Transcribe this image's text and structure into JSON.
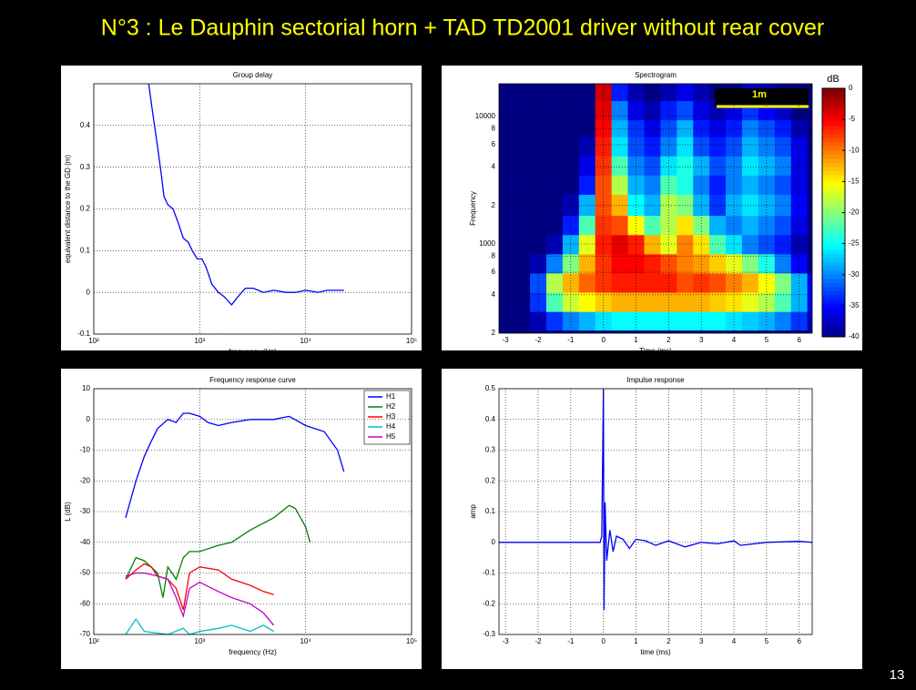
{
  "slide": {
    "title": "N°3 : Le Dauphin sectorial horn + TAD TD2001 driver without rear cover",
    "page_number": "13"
  },
  "chart_data": [
    {
      "type": "line",
      "title": "Group delay",
      "xlabel": "frequency  (Hz)",
      "ylabel": "equivalent distance to the GD (m)",
      "xscale": "log",
      "grid": true,
      "xlim": [
        100,
        100000
      ],
      "ylim": [
        -0.1,
        0.5
      ],
      "xticks": [
        {
          "value": 100,
          "label": "10²"
        },
        {
          "value": 1000,
          "label": "10³"
        },
        {
          "value": 10000,
          "label": "10⁴"
        },
        {
          "value": 100000,
          "label": "10⁵"
        }
      ],
      "yticks": [
        -0.1,
        0,
        0.1,
        0.2,
        0.3,
        0.4
      ],
      "series": [
        {
          "color": "#0000ff",
          "x": [
            330,
            360,
            400,
            430,
            460,
            500,
            560,
            620,
            700,
            780,
            850,
            950,
            1050,
            1150,
            1300,
            1500,
            1700,
            2000,
            2300,
            2700,
            3200,
            4000,
            5000,
            6500,
            8000,
            10000,
            13000,
            16000,
            20000,
            23000
          ],
          "values": [
            0.5,
            0.43,
            0.35,
            0.29,
            0.23,
            0.21,
            0.2,
            0.17,
            0.13,
            0.12,
            0.1,
            0.08,
            0.08,
            0.06,
            0.02,
            0.0,
            -0.01,
            -0.03,
            -0.01,
            0.01,
            0.01,
            0.0,
            0.005,
            0.0,
            0.0,
            0.005,
            0.0,
            0.005,
            0.005,
            0.005
          ]
        }
      ]
    },
    {
      "type": "heatmap",
      "title": "Spectrogram",
      "xlabel": "Time (ms)",
      "ylabel": "Frequency",
      "yscale": "log",
      "grid": true,
      "colormap": "jet",
      "colorbar_label": "dB",
      "annotation": "1m",
      "xlim": [
        -3.2,
        6.4
      ],
      "ylim": [
        200,
        18000
      ],
      "xticks": [
        -3,
        -2,
        -1,
        0,
        1,
        2,
        3,
        4,
        5,
        6
      ],
      "yticks": [
        {
          "value": 200,
          "label": "2"
        },
        {
          "value": 400,
          "label": "4"
        },
        {
          "value": 600,
          "label": "6"
        },
        {
          "value": 800,
          "label": "8"
        },
        1000,
        {
          "value": 2000,
          "label": "2"
        },
        {
          "value": 4000,
          "label": "4"
        },
        {
          "value": 6000,
          "label": "6"
        },
        {
          "value": 8000,
          "label": "8"
        },
        10000
      ],
      "clim": [
        -40,
        0
      ],
      "cticks": [
        0,
        -5,
        -10,
        -15,
        -20,
        -25,
        -30,
        -35,
        -40
      ],
      "x": [
        -3,
        -2.5,
        -2,
        -1.5,
        -1,
        -0.5,
        0,
        0.5,
        1,
        1.5,
        2,
        2.5,
        3,
        3.5,
        4,
        4.5,
        5,
        5.5,
        6,
        6.5
      ],
      "y": [
        250,
        350,
        500,
        700,
        1000,
        1400,
        2000,
        3000,
        4000,
        6000,
        8000,
        11000,
        16000
      ],
      "z": [
        [
          -40,
          -40,
          -38,
          -33,
          -30,
          -28,
          -26,
          -25,
          -25,
          -25,
          -25,
          -25,
          -25,
          -25,
          -26,
          -27,
          -28,
          -30,
          -33,
          -38
        ],
        [
          -40,
          -40,
          -33,
          -22,
          -17,
          -15,
          -13,
          -12,
          -12,
          -12,
          -12,
          -12,
          -12,
          -13,
          -14,
          -16,
          -18,
          -22,
          -28,
          -36
        ],
        [
          -40,
          -40,
          -32,
          -18,
          -12,
          -9,
          -7,
          -6,
          -6,
          -6,
          -6,
          -8,
          -7,
          -8,
          -10,
          -12,
          -15,
          -20,
          -28,
          -36
        ],
        [
          -40,
          -40,
          -38,
          -30,
          -20,
          -12,
          -7,
          -5,
          -5,
          -6,
          -8,
          -10,
          -11,
          -13,
          -16,
          -20,
          -24,
          -30,
          -35,
          -40
        ],
        [
          -40,
          -40,
          -40,
          -38,
          -28,
          -16,
          -6,
          -4,
          -6,
          -12,
          -16,
          -10,
          -14,
          -22,
          -26,
          -30,
          -32,
          -34,
          -38,
          -40
        ],
        [
          -40,
          -40,
          -40,
          -40,
          -34,
          -22,
          -7,
          -8,
          -15,
          -22,
          -18,
          -14,
          -20,
          -28,
          -30,
          -28,
          -30,
          -32,
          -36,
          -40
        ],
        [
          -40,
          -40,
          -40,
          -40,
          -38,
          -28,
          -8,
          -12,
          -25,
          -28,
          -18,
          -20,
          -28,
          -33,
          -28,
          -26,
          -28,
          -30,
          -35,
          -40
        ],
        [
          -40,
          -40,
          -40,
          -40,
          -40,
          -34,
          -8,
          -18,
          -28,
          -30,
          -22,
          -24,
          -30,
          -34,
          -30,
          -28,
          -30,
          -32,
          -36,
          -40
        ],
        [
          -40,
          -40,
          -40,
          -40,
          -40,
          -36,
          -7,
          -22,
          -30,
          -32,
          -26,
          -24,
          -28,
          -32,
          -30,
          -26,
          -28,
          -30,
          -36,
          -40
        ],
        [
          -40,
          -40,
          -40,
          -40,
          -40,
          -38,
          -6,
          -26,
          -32,
          -34,
          -30,
          -26,
          -32,
          -34,
          -32,
          -28,
          -30,
          -32,
          -36,
          -40
        ],
        [
          -40,
          -40,
          -40,
          -40,
          -40,
          -40,
          -5,
          -28,
          -33,
          -36,
          -32,
          -28,
          -34,
          -36,
          -34,
          -30,
          -32,
          -34,
          -38,
          -40
        ],
        [
          -40,
          -40,
          -40,
          -40,
          -40,
          -40,
          -4,
          -30,
          -36,
          -38,
          -34,
          -32,
          -36,
          -38,
          -36,
          -33,
          -35,
          -37,
          -40,
          -40
        ],
        [
          -40,
          -40,
          -40,
          -40,
          -40,
          -40,
          -3,
          -34,
          -38,
          -40,
          -38,
          -36,
          -38,
          -40,
          -40,
          -37,
          -38,
          -40,
          -40,
          -40
        ]
      ]
    },
    {
      "type": "line",
      "title": "Frequency response curve",
      "xlabel": "frequency  (Hz)",
      "ylabel": "L (dB)",
      "xscale": "log",
      "grid": true,
      "legend": "upper right",
      "xlim": [
        100,
        100000
      ],
      "ylim": [
        -70,
        10
      ],
      "xticks": [
        {
          "value": 100,
          "label": "10²"
        },
        {
          "value": 1000,
          "label": "10³"
        },
        {
          "value": 10000,
          "label": "10⁴"
        },
        {
          "value": 100000,
          "label": "10⁵"
        }
      ],
      "yticks": [
        -70,
        -60,
        -50,
        -40,
        -30,
        -20,
        -10,
        0,
        10
      ],
      "series": [
        {
          "name": "H1",
          "color": "#0000ff",
          "x": [
            200,
            250,
            300,
            350,
            400,
            500,
            600,
            700,
            800,
            1000,
            1200,
            1500,
            2000,
            3000,
            5000,
            7000,
            10000,
            15000,
            20000,
            23000
          ],
          "values": [
            -32,
            -20,
            -12,
            -7,
            -3,
            0,
            -1,
            2,
            2,
            1,
            -1,
            -2,
            -1,
            0,
            0,
            1,
            -2,
            -4,
            -10,
            -17
          ]
        },
        {
          "name": "H2",
          "color": "#008000",
          "x": [
            200,
            250,
            300,
            400,
            450,
            500,
            600,
            700,
            800,
            1000,
            1500,
            2000,
            3000,
            5000,
            7000,
            8000,
            10000,
            11000
          ],
          "values": [
            -52,
            -45,
            -46,
            -50,
            -58,
            -48,
            -52,
            -45,
            -43,
            -43,
            -41,
            -40,
            -36,
            -32,
            -28,
            -29,
            -35,
            -40
          ]
        },
        {
          "name": "H3",
          "color": "#ff0000",
          "x": [
            200,
            250,
            300,
            350,
            400,
            500,
            600,
            700,
            800,
            1000,
            1500,
            2000,
            3000,
            4000,
            5000
          ],
          "values": [
            -52,
            -49,
            -47,
            -48,
            -51,
            -52,
            -55,
            -62,
            -50,
            -48,
            -49,
            -52,
            -54,
            -56,
            -57
          ]
        },
        {
          "name": "H4",
          "color": "#00c0c0",
          "x": [
            200,
            250,
            300,
            500,
            700,
            800,
            1000,
            1500,
            2000,
            3000,
            4000,
            5000
          ],
          "values": [
            -70,
            -65,
            -69,
            -70,
            -68,
            -70,
            -69,
            -68,
            -67,
            -69,
            -67,
            -69
          ]
        },
        {
          "name": "H5",
          "color": "#c000c0",
          "x": [
            200,
            250,
            300,
            400,
            500,
            600,
            700,
            800,
            1000,
            1500,
            2000,
            3000,
            4000,
            5000
          ],
          "values": [
            -51,
            -50,
            -50,
            -51,
            -52,
            -58,
            -64,
            -55,
            -53,
            -56,
            -58,
            -60,
            -63,
            -67
          ]
        }
      ]
    },
    {
      "type": "line",
      "title": "Impulse response",
      "xlabel": "time (ms)",
      "ylabel": "amp",
      "grid": true,
      "xlim": [
        -3.2,
        6.4
      ],
      "ylim": [
        -0.3,
        0.5
      ],
      "xticks": [
        -3,
        -2,
        -1,
        0,
        1,
        2,
        3,
        4,
        5,
        6
      ],
      "yticks": [
        -0.3,
        -0.2,
        -0.1,
        0,
        0.1,
        0.2,
        0.3,
        0.4,
        0.5
      ],
      "series": [
        {
          "color": "#0000ff",
          "x": [
            -3.2,
            -0.1,
            -0.05,
            0,
            0.02,
            0.05,
            0.1,
            0.2,
            0.3,
            0.4,
            0.6,
            0.8,
            1.0,
            1.3,
            1.6,
            2.0,
            2.5,
            3,
            3.5,
            4,
            4.2,
            5,
            6,
            6.4
          ],
          "values": [
            0,
            0,
            0.02,
            0.5,
            -0.22,
            0.13,
            -0.06,
            0.04,
            -0.03,
            0.02,
            0.01,
            -0.02,
            0.01,
            0.005,
            -0.01,
            0.005,
            -0.015,
            0,
            -0.005,
            0.005,
            -0.01,
            0,
            0.003,
            0
          ]
        }
      ]
    }
  ]
}
